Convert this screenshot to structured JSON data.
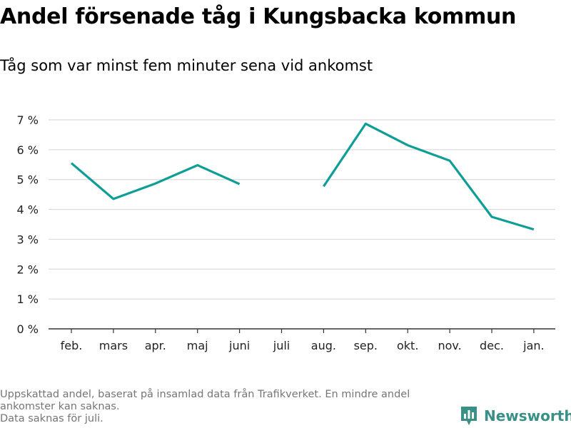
{
  "header": {
    "title": "Andel försenade tåg i Kungsbacka kommun",
    "subtitle": "Tåg som var minst fem minuter sena vid ankomst"
  },
  "notes": [
    "Uppskattad andel, baserat på insamlad data från Trafikverket. En mindre andel ankomster kan saknas.",
    "Data saknas för juli."
  ],
  "brand": {
    "name": "Newsworthy",
    "icon": "bar-chart-icon",
    "color": "#3a8f86"
  },
  "chart_data": {
    "type": "line",
    "title": "Andel försenade tåg i Kungsbacka kommun",
    "subtitle": "Tåg som var minst fem minuter sena vid ankomst",
    "categories": [
      "feb.",
      "mars",
      "apr.",
      "maj",
      "juni",
      "juli",
      "aug.",
      "sep.",
      "okt.",
      "nov.",
      "dec.",
      "jan."
    ],
    "series": [
      {
        "color": "#0e9e96",
        "values": [
          5.55,
          4.35,
          4.87,
          5.48,
          4.85,
          null,
          4.77,
          6.87,
          6.15,
          5.63,
          3.75,
          3.33
        ]
      }
    ],
    "yticks": [
      0,
      1,
      2,
      3,
      4,
      5,
      6,
      7
    ],
    "tick_suffix": " %",
    "ylim": [
      0,
      7
    ],
    "grid": true,
    "legend": "none"
  }
}
